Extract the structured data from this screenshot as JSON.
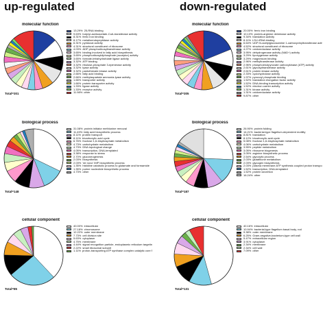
{
  "headers": {
    "up": "up-regulated",
    "down": "down-regulated"
  },
  "chart_data": [
    {
      "type": "pie",
      "panel": "up-mf",
      "title": "molecular function",
      "total_label": "Total=301",
      "slices": [
        {
          "pct": "13.29%",
          "label": "25-RNA binding",
          "value": 13.29,
          "color": "#1f3fa0"
        },
        {
          "pct": "9.63%",
          "label": "butyryl-acetoacetate-CoA-transferase activity",
          "value": 9.63,
          "color": "#ffffff"
        },
        {
          "pct": "8.31%",
          "label": "ferric iron binding",
          "value": 8.31,
          "color": "#000000"
        },
        {
          "pct": "8.17%",
          "label": "metalloendopeptidase activity",
          "value": 8.17,
          "color": "#e6e6e6"
        },
        {
          "pct": "6.31%",
          "label": "pyridoxal activity",
          "value": 6.31,
          "color": "#f0a020"
        },
        {
          "pct": "4.31%",
          "label": "structural constituent of ribosome",
          "value": 4.31,
          "color": "#ff99cc"
        },
        {
          "pct": "4.03%",
          "label": "ADP phosphoribosyltransferase activity",
          "value": 4.03,
          "color": "#7fd1e8"
        },
        {
          "pct": "3.65%",
          "label": "binding involved in fatty acid biosynthesis",
          "value": 3.65,
          "color": "#ffd9f0"
        },
        {
          "pct": "3.65%",
          "label": "phosphoribosyldiphosphate (acceptor) activity",
          "value": 3.65,
          "color": "#ffffcc"
        },
        {
          "pct": "3.65%",
          "label": "formate-tetrahydrofolate ligase activity",
          "value": 3.65,
          "color": "#c8f0c0"
        },
        {
          "pct": "3.32%",
          "label": "ATP binding",
          "value": 3.32,
          "color": "#d9a8e8"
        },
        {
          "pct": "3.32%",
          "label": "ribulose-phosphate 3-epimerase activity",
          "value": 3.32,
          "color": "#ffa080"
        },
        {
          "pct": "3.32%",
          "label": "lyase activity",
          "value": 3.32,
          "color": "#f5f5f5"
        },
        {
          "pct": "3.32%",
          "label": "pantothenate kinase activity",
          "value": 3.32,
          "color": "#f070c0"
        },
        {
          "pct": "2.66%",
          "label": "fatty acid binding",
          "value": 2.66,
          "color": "#d0f088"
        },
        {
          "pct": "2.66%",
          "label": "methylaspartate ammonia-lyase activity",
          "value": 2.66,
          "color": "#6ab04a"
        },
        {
          "pct": "1.66%",
          "label": "transporter activity",
          "value": 1.66,
          "color": "#b0b0b0"
        },
        {
          "pct": "1.66%",
          "label": "protein transporter activity",
          "value": 1.66,
          "color": "#f0f020"
        },
        {
          "pct": "1.33%",
          "label": "ligase activity",
          "value": 1.33,
          "color": "#2080c0"
        },
        {
          "pct": "1.33%",
          "label": "receptor activity",
          "value": 1.33,
          "color": "#80e060"
        },
        {
          "pct": "11.98%",
          "label": "other",
          "value": 11.98,
          "color": "#e83030"
        }
      ]
    },
    {
      "type": "pie",
      "panel": "down-mf",
      "title": "molecular function",
      "total_label": "Total=305",
      "slices": [
        {
          "pct": "20.00%",
          "label": "ferric iron binding",
          "value": 20.0,
          "color": "#1f3fa0"
        },
        {
          "pct": "10.13%",
          "label": "protein-arginine deiminase activity",
          "value": 10.13,
          "color": "#ffffff"
        },
        {
          "pct": "9.34%",
          "label": "translation activity",
          "value": 9.34,
          "color": "#000000"
        },
        {
          "pct": "8.11%",
          "label": "LSU rRNA binding",
          "value": 8.11,
          "color": "#e6e6e6"
        },
        {
          "pct": "6.64%",
          "label": "UDP-N-acetylglucosamine 1-carboxyvinyltransferase activity",
          "value": 6.64,
          "color": "#f0a020"
        },
        {
          "pct": "4.52%",
          "label": "structural constituent of ribosome",
          "value": 4.52,
          "color": "#ff99cc"
        },
        {
          "pct": "4.27%",
          "label": "oxidoreductase activity",
          "value": 4.27,
          "color": "#7fd1e8"
        },
        {
          "pct": "3.95%",
          "label": "dehydrogenase activity (NAD+) activity",
          "value": 3.95,
          "color": "#ffd9f0"
        },
        {
          "pct": "3.29%",
          "label": "lipoxygenase activity",
          "value": 3.29,
          "color": "#ffffcc"
        },
        {
          "pct": "3.29%",
          "label": "magnesium binding",
          "value": 3.29,
          "color": "#c8f0c0"
        },
        {
          "pct": "2.96%",
          "label": "methyltransferase activity",
          "value": 2.96,
          "color": "#d9a8e8"
        },
        {
          "pct": "2.96%",
          "label": "phosphoenolpyruvate carboxykinase (ATP) activity",
          "value": 2.96,
          "color": "#ffa080"
        },
        {
          "pct": "2.61%",
          "label": "glycosyltransferase activity",
          "value": 2.61,
          "color": "#f5f5f5"
        },
        {
          "pct": "2.61%",
          "label": "protein kinase activity",
          "value": 2.61,
          "color": "#f070c0"
        },
        {
          "pct": "2.33%",
          "label": "cyclohydrolase activity",
          "value": 2.33,
          "color": "#d0f088"
        },
        {
          "pct": "1.97%",
          "label": "pyruvoyl phosphate binding",
          "value": 1.97,
          "color": "#6ab04a"
        },
        {
          "pct": "1.52%",
          "label": "translation elongation factor activity",
          "value": 1.52,
          "color": "#b0b0b0"
        },
        {
          "pct": "1.52%",
          "label": "DNA-binding transcription activity",
          "value": 1.52,
          "color": "#f0f020"
        },
        {
          "pct": "1.52%",
          "label": "electron carrier activity",
          "value": 1.52,
          "color": "#2080c0"
        },
        {
          "pct": "1.31%",
          "label": "kinase activity",
          "value": 1.31,
          "color": "#80e060"
        },
        {
          "pct": "1.31%",
          "label": "oxidoreductase activity",
          "value": 1.31,
          "color": "#9a9a9a"
        },
        {
          "pct": "9.87%",
          "label": "other",
          "value": 9.87,
          "color": "#e83030"
        }
      ]
    },
    {
      "type": "pie",
      "panel": "up-bp",
      "title": "biological process",
      "total_label": "Total=148",
      "slices": [
        {
          "pct": "31.08%",
          "label": "protein initiator methionine removal",
          "value": 31.08,
          "color": "#ffffff"
        },
        {
          "pct": "11.49%",
          "label": "fatty acid biosynthetic process",
          "value": 11.49,
          "color": "#7fd1e8"
        },
        {
          "pct": "8.11%",
          "label": "protein transport",
          "value": 8.11,
          "color": "#d9a8e8"
        },
        {
          "pct": "8.11%",
          "label": "tricarboxylic acid cycle",
          "value": 8.11,
          "color": "#000000"
        },
        {
          "pct": "6.76%",
          "label": "fructose 1,6-bisphosphate metabolism",
          "value": 6.76,
          "color": "#ff99cc"
        },
        {
          "pct": "4.73%",
          "label": "carbohydrate metabolism",
          "value": 4.73,
          "color": "#ffffcc"
        },
        {
          "pct": "4.73%",
          "label": "DNA topological change",
          "value": 4.73,
          "color": "#c8f0c0"
        },
        {
          "pct": "4.05%",
          "label": "transcription, DNA-templated",
          "value": 4.05,
          "color": "#f070c0"
        },
        {
          "pct": "3.38%",
          "label": "response to stress",
          "value": 3.38,
          "color": "#e83030"
        },
        {
          "pct": "2.70%",
          "label": "gluconeogenesis",
          "value": 2.7,
          "color": "#f0a020"
        },
        {
          "pct": "2.03%",
          "label": "biosynthesis",
          "value": 2.03,
          "color": "#6ab04a"
        },
        {
          "pct": "2.03%",
          "label": "'de novo' IMP biosynthetic process",
          "value": 2.03,
          "color": "#d0f088"
        },
        {
          "pct": "1.35%",
          "label": "histidine catabolic process to glutamate and formamide",
          "value": 1.35,
          "color": "#ffd9f0"
        },
        {
          "pct": "1.35%",
          "label": "purine nucleotide biosynthetic process",
          "value": 1.35,
          "color": "#2080c0"
        },
        {
          "pct": "4.73%",
          "label": "other",
          "value": 4.73,
          "color": "#b0b0b0"
        }
      ]
    },
    {
      "type": "pie",
      "panel": "down-bp",
      "title": "biological process",
      "total_label": "Total=187",
      "slices": [
        {
          "pct": "26.90%",
          "label": "protein folding",
          "value": 26.9,
          "color": "#ffffff"
        },
        {
          "pct": "14.21%",
          "label": "bacterial-type flagellum-dependent motility",
          "value": 14.21,
          "color": "#7fd1e8"
        },
        {
          "pct": "8.81%",
          "label": "translation",
          "value": 8.81,
          "color": "#d9a8e8"
        },
        {
          "pct": "8.12%",
          "label": "tricarboxylic acid cycle",
          "value": 8.12,
          "color": "#000000"
        },
        {
          "pct": "5.08%",
          "label": "fructose 1,6-bisphosphate metabolism",
          "value": 5.08,
          "color": "#ff99cc"
        },
        {
          "pct": "4.06%",
          "label": "carbohydrate metabolism",
          "value": 4.06,
          "color": "#ffffcc"
        },
        {
          "pct": "3.55%",
          "label": "peptide metabolism",
          "value": 3.55,
          "color": "#c8f0c0"
        },
        {
          "pct": "3.05%",
          "label": "ribosome biogenesis",
          "value": 3.05,
          "color": "#f070c0"
        },
        {
          "pct": "3.05%",
          "label": "arginine biosynthetic process",
          "value": 3.05,
          "color": "#e83030"
        },
        {
          "pct": "2.54%",
          "label": "glycolytic process",
          "value": 2.54,
          "color": "#f0a020"
        },
        {
          "pct": "2.03%",
          "label": "glutathione metabolism",
          "value": 2.03,
          "color": "#6ab04a"
        },
        {
          "pct": "2.03%",
          "label": "glycogen biosynthesis",
          "value": 2.03,
          "color": "#d0f088"
        },
        {
          "pct": "2.03%",
          "label": "plasma membrane ATP synthesis coupled proton transport",
          "value": 2.03,
          "color": "#ffd9f0"
        },
        {
          "pct": "1.52%",
          "label": "transcription, DNA-templated",
          "value": 1.52,
          "color": "#2080c0"
        },
        {
          "pct": "1.52%",
          "label": "protein secretion",
          "value": 1.52,
          "color": "#b0b0b0"
        },
        {
          "pct": "16.24%",
          "label": "other",
          "value": 16.24,
          "color": "#e0e0e0"
        }
      ]
    },
    {
      "type": "pie",
      "panel": "up-cc",
      "title": "cellular component",
      "total_label": "Total=85",
      "slices": [
        {
          "pct": "40.00%",
          "label": "intracellular",
          "value": 40.0,
          "color": "#ffffff"
        },
        {
          "pct": "27.18%",
          "label": "chromosome",
          "value": 27.18,
          "color": "#7fd1e8"
        },
        {
          "pct": "12.22%",
          "label": "outer membrane",
          "value": 12.22,
          "color": "#000000"
        },
        {
          "pct": "7.73%",
          "label": "cell division site",
          "value": 7.73,
          "color": "#f0a020"
        },
        {
          "pct": "5.63%",
          "label": "cytoplasm",
          "value": 5.63,
          "color": "#ffd9f0"
        },
        {
          "pct": "4.75%",
          "label": "membrane",
          "value": 4.75,
          "color": "#c8f0c0"
        },
        {
          "pct": "4.44%",
          "label": "signal recognition particle, endoplasmic reticulum targeting",
          "value": 4.44,
          "color": "#d9a8e8"
        },
        {
          "pct": "2.22%",
          "label": "small ribosomal subunit",
          "value": 2.22,
          "color": "#e83030"
        },
        {
          "pct": "1.11%",
          "label": "proton-transporting ATP synthase complex catalytic core F(1)",
          "value": 1.11,
          "color": "#6ab04a"
        }
      ]
    },
    {
      "type": "pie",
      "panel": "down-cc",
      "title": "cellular component",
      "total_label": "Total=131",
      "slices": [
        {
          "pct": "40.16%",
          "label": "intracellular",
          "value": 40.16,
          "color": "#ffffff"
        },
        {
          "pct": "10.94%",
          "label": "bacterial-type flagellum basal body, rod",
          "value": 10.94,
          "color": "#7fd1e8"
        },
        {
          "pct": "9.38%",
          "label": "outer membrane",
          "value": 9.38,
          "color": "#000000"
        },
        {
          "pct": "6.25%",
          "label": "Gram-negative-bacterium-type cell wall",
          "value": 6.25,
          "color": "#f0a020"
        },
        {
          "pct": "5.47%",
          "label": "extracellular region",
          "value": 5.47,
          "color": "#ffd9f0"
        },
        {
          "pct": "3.91%",
          "label": "cytoplasm",
          "value": 3.91,
          "color": "#d9a8e8"
        },
        {
          "pct": "2.34%",
          "label": "membrane",
          "value": 2.34,
          "color": "#6ab04a"
        },
        {
          "pct": "2.34%",
          "label": "cell wall",
          "value": 2.34,
          "color": "#c8f0c0"
        },
        {
          "pct": "7.09%",
          "label": "other",
          "value": 7.09,
          "color": "#e83030"
        }
      ]
    }
  ]
}
